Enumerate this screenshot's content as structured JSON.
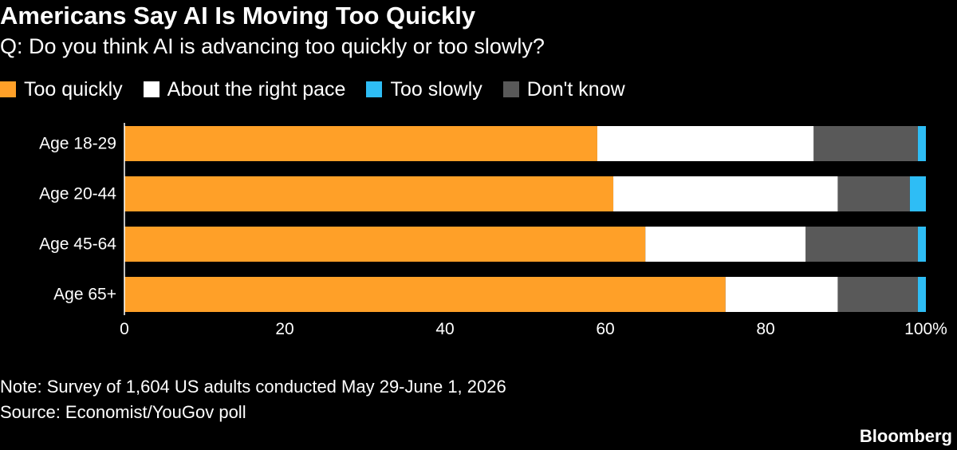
{
  "header": {
    "title": "Americans Say AI Is Moving Too Quickly",
    "subtitle": "Q: Do you think AI is advancing too quickly or too slowly?"
  },
  "legend": [
    {
      "label": "Too quickly",
      "color": "#FFA028"
    },
    {
      "label": "About the right pace",
      "color": "#FFFFFF"
    },
    {
      "label": "Too slowly",
      "color": "#2EBDF5"
    },
    {
      "label": "Don't know",
      "color": "#595959"
    }
  ],
  "chart_data": {
    "type": "bar",
    "orientation": "horizontal",
    "stacked": true,
    "categories": [
      "Age 18-29",
      "Age 20-44",
      "Age 45-64",
      "Age 65+"
    ],
    "series": [
      {
        "name": "Too quickly",
        "color": "#FFA028",
        "values": [
          59,
          61,
          65,
          75
        ]
      },
      {
        "name": "About the right pace",
        "color": "#FFFFFF",
        "values": [
          27,
          28,
          20,
          14
        ]
      },
      {
        "name": "Don't know",
        "color": "#595959",
        "values": [
          13,
          9,
          14,
          10
        ]
      },
      {
        "name": "Too slowly",
        "color": "#2EBDF5",
        "values": [
          1,
          2,
          1,
          1
        ]
      }
    ],
    "xlim": [
      0,
      100
    ],
    "xticks": [
      0,
      20,
      40,
      60,
      80,
      100
    ],
    "xtick_labels": [
      "0",
      "20",
      "40",
      "60",
      "80",
      "100%"
    ],
    "grid": false,
    "legend_position": "top-left"
  },
  "footer": {
    "note": "Note: Survey of 1,604 US adults conducted May 29-June 1, 2026",
    "source": "Source: Economist/YouGov poll",
    "brand": "Bloomberg"
  }
}
